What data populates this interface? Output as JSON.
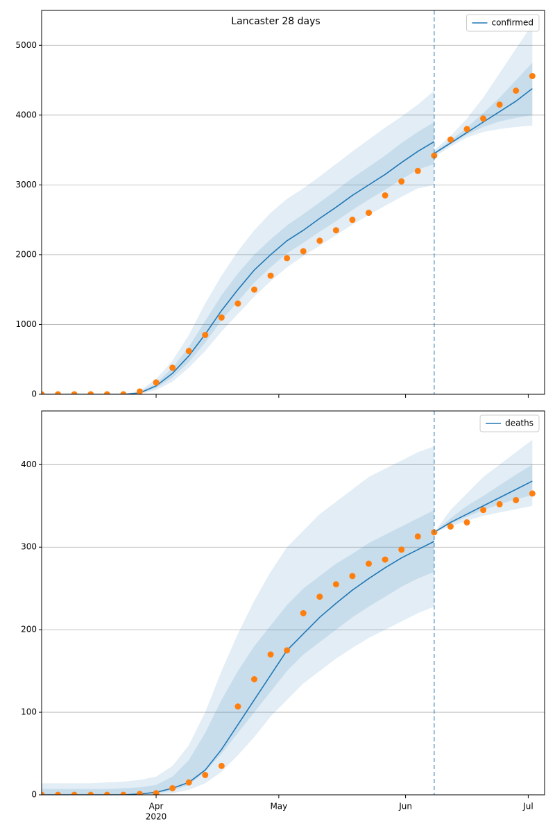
{
  "chart_data": [
    {
      "type": "line",
      "title": "Lancaster 28 days",
      "x": [
        0,
        4,
        8,
        12,
        16,
        20,
        24,
        28,
        32,
        36,
        40,
        44,
        48,
        52,
        56,
        60,
        64,
        68,
        72,
        76,
        80,
        84,
        88,
        92,
        96,
        100,
        104,
        108,
        112,
        116,
        120
      ],
      "xlim": [
        0,
        123
      ],
      "xticks": [
        28,
        58,
        89,
        119
      ],
      "ylim": [
        0,
        5500
      ],
      "yticks": [
        0,
        1000,
        2000,
        3000,
        4000,
        5000
      ],
      "grid": true,
      "legend": "upper right",
      "vline": 96,
      "vline_color": "#1f77b4",
      "series": [
        {
          "name": "confirmed",
          "color": "#1f77b4",
          "values": [
            0,
            0,
            0,
            0,
            0,
            0,
            20,
            120,
            300,
            550,
            860,
            1200,
            1500,
            1780,
            2000,
            2200,
            2350,
            2520,
            2680,
            2850,
            3000,
            3150,
            3320,
            3480,
            3620,
            null,
            null,
            null,
            null,
            null,
            null
          ]
        },
        {
          "color": "#1f77b4",
          "values": [
            null,
            null,
            null,
            null,
            null,
            null,
            null,
            null,
            null,
            null,
            null,
            null,
            null,
            null,
            null,
            null,
            null,
            null,
            null,
            null,
            null,
            null,
            null,
            null,
            3450,
            3600,
            3750,
            3900,
            4050,
            4200,
            4380
          ]
        },
        {
          "color": "#ff7f0e",
          "marker": "o",
          "values": [
            0,
            0,
            0,
            0,
            0,
            0,
            40,
            170,
            380,
            620,
            850,
            1100,
            1300,
            1500,
            1700,
            1950,
            2050,
            2200,
            2350,
            2500,
            2600,
            2850,
            3050,
            3200,
            3420,
            3650,
            3800,
            3950,
            4150,
            4350,
            4560
          ]
        }
      ],
      "bands": [
        {
          "color": "#1f77b4",
          "lower": [
            0,
            0,
            0,
            0,
            0,
            0,
            5,
            60,
            180,
            380,
            620,
            900,
            1150,
            1400,
            1620,
            1820,
            1980,
            2130,
            2280,
            2430,
            2570,
            2700,
            2830,
            2950,
            3000,
            null,
            null,
            null,
            null,
            null,
            null
          ],
          "upper": [
            0,
            0,
            0,
            0,
            0,
            5,
            50,
            220,
            480,
            850,
            1300,
            1700,
            2050,
            2350,
            2600,
            2800,
            2950,
            3120,
            3300,
            3480,
            3650,
            3820,
            3980,
            4150,
            4350,
            null,
            null,
            null,
            null,
            null,
            null
          ]
        },
        {
          "color": "#1f77b4",
          "lower": [
            0,
            0,
            0,
            0,
            0,
            0,
            12,
            90,
            240,
            460,
            740,
            1060,
            1330,
            1600,
            1820,
            2020,
            2170,
            2330,
            2480,
            2640,
            2790,
            2930,
            3080,
            3220,
            3300,
            null,
            null,
            null,
            null,
            null,
            null
          ],
          "upper": [
            0,
            0,
            0,
            0,
            0,
            2,
            30,
            160,
            380,
            680,
            1050,
            1420,
            1730,
            2000,
            2220,
            2420,
            2580,
            2750,
            2920,
            3100,
            3260,
            3420,
            3600,
            3760,
            3900,
            null,
            null,
            null,
            null,
            null,
            null
          ]
        },
        {
          "color": "#1f77b4",
          "lower": [
            null,
            null,
            null,
            null,
            null,
            null,
            null,
            null,
            null,
            null,
            null,
            null,
            null,
            null,
            null,
            null,
            null,
            null,
            null,
            null,
            null,
            null,
            null,
            null,
            3400,
            3550,
            3680,
            3760,
            3800,
            3830,
            3850
          ],
          "upper": [
            null,
            null,
            null,
            null,
            null,
            null,
            null,
            null,
            null,
            null,
            null,
            null,
            null,
            null,
            null,
            null,
            null,
            null,
            null,
            null,
            null,
            null,
            null,
            null,
            3500,
            3700,
            3950,
            4250,
            4600,
            4950,
            5300
          ]
        },
        {
          "color": "#1f77b4",
          "lower": [
            null,
            null,
            null,
            null,
            null,
            null,
            null,
            null,
            null,
            null,
            null,
            null,
            null,
            null,
            null,
            null,
            null,
            null,
            null,
            null,
            null,
            null,
            null,
            null,
            3430,
            3580,
            3720,
            3830,
            3910,
            3960,
            4000
          ],
          "upper": [
            null,
            null,
            null,
            null,
            null,
            null,
            null,
            null,
            null,
            null,
            null,
            null,
            null,
            null,
            null,
            null,
            null,
            null,
            null,
            null,
            null,
            null,
            null,
            null,
            3470,
            3640,
            3820,
            4030,
            4250,
            4500,
            4750
          ]
        }
      ]
    },
    {
      "type": "line",
      "x": [
        0,
        4,
        8,
        12,
        16,
        20,
        24,
        28,
        32,
        36,
        40,
        44,
        48,
        52,
        56,
        60,
        64,
        68,
        72,
        76,
        80,
        84,
        88,
        92,
        96,
        100,
        104,
        108,
        112,
        116,
        120
      ],
      "xlim": [
        0,
        123
      ],
      "xticks": [
        {
          "value": 28,
          "label": "Apr",
          "sublabel": "2020"
        },
        {
          "value": 58,
          "label": "May"
        },
        {
          "value": 89,
          "label": "Jun"
        },
        {
          "value": 119,
          "label": "Jul"
        }
      ],
      "ylim": [
        0,
        465
      ],
      "yticks": [
        0,
        100,
        200,
        300,
        400
      ],
      "grid": true,
      "legend": "upper right",
      "vline": 96,
      "vline_color": "#1f77b4",
      "series": [
        {
          "name": "deaths",
          "color": "#1f77b4",
          "values": [
            0,
            0,
            0,
            0,
            0,
            0,
            1,
            3,
            8,
            15,
            30,
            55,
            85,
            115,
            145,
            175,
            195,
            215,
            232,
            248,
            262,
            275,
            287,
            297,
            307,
            null,
            null,
            null,
            null,
            null,
            null
          ]
        },
        {
          "color": "#1f77b4",
          "values": [
            null,
            null,
            null,
            null,
            null,
            null,
            null,
            null,
            null,
            null,
            null,
            null,
            null,
            null,
            null,
            null,
            null,
            null,
            null,
            null,
            null,
            null,
            null,
            null,
            318,
            330,
            340,
            350,
            360,
            370,
            380
          ]
        },
        {
          "color": "#ff7f0e",
          "marker": "o",
          "values": [
            0,
            0,
            0,
            0,
            0,
            0,
            1,
            2,
            8,
            15,
            24,
            35,
            107,
            140,
            170,
            175,
            220,
            240,
            255,
            265,
            280,
            285,
            297,
            313,
            318,
            325,
            330,
            345,
            352,
            357,
            365
          ]
        }
      ],
      "bands": [
        {
          "color": "#1f77b4",
          "lower": [
            0,
            0,
            0,
            0,
            0,
            0,
            0,
            0,
            2,
            6,
            14,
            28,
            48,
            70,
            95,
            115,
            135,
            150,
            165,
            178,
            190,
            200,
            210,
            220,
            228,
            null,
            null,
            null,
            null,
            null,
            null
          ],
          "upper": [
            14,
            14,
            14,
            14,
            15,
            16,
            18,
            22,
            35,
            60,
            100,
            150,
            195,
            235,
            270,
            300,
            320,
            340,
            355,
            370,
            385,
            395,
            405,
            415,
            422,
            null,
            null,
            null,
            null,
            null,
            null
          ]
        },
        {
          "color": "#1f77b4",
          "lower": [
            0,
            0,
            0,
            0,
            0,
            0,
            1,
            2,
            5,
            12,
            28,
            50,
            75,
            100,
            125,
            150,
            170,
            185,
            200,
            215,
            228,
            240,
            252,
            262,
            270,
            null,
            null,
            null,
            null,
            null,
            null
          ],
          "upper": [
            7,
            7,
            7,
            7,
            7,
            8,
            9,
            12,
            22,
            42,
            75,
            115,
            150,
            180,
            205,
            230,
            250,
            265,
            280,
            292,
            305,
            315,
            325,
            335,
            345,
            null,
            null,
            null,
            null,
            null,
            null
          ]
        },
        {
          "color": "#1f77b4",
          "lower": [
            null,
            null,
            null,
            null,
            null,
            null,
            null,
            null,
            null,
            null,
            null,
            null,
            null,
            null,
            null,
            null,
            null,
            null,
            null,
            null,
            null,
            null,
            null,
            null,
            318,
            325,
            332,
            338,
            342,
            346,
            350
          ],
          "upper": [
            null,
            null,
            null,
            null,
            null,
            null,
            null,
            null,
            null,
            null,
            null,
            null,
            null,
            null,
            null,
            null,
            null,
            null,
            null,
            null,
            null,
            null,
            null,
            null,
            318,
            345,
            365,
            385,
            400,
            415,
            430
          ]
        },
        {
          "color": "#1f77b4",
          "lower": [
            null,
            null,
            null,
            null,
            null,
            null,
            null,
            null,
            null,
            null,
            null,
            null,
            null,
            null,
            null,
            null,
            null,
            null,
            null,
            null,
            null,
            null,
            null,
            null,
            318,
            328,
            337,
            345,
            352,
            358,
            363
          ],
          "upper": [
            null,
            null,
            null,
            null,
            null,
            null,
            null,
            null,
            null,
            null,
            null,
            null,
            null,
            null,
            null,
            null,
            null,
            null,
            null,
            null,
            null,
            null,
            null,
            null,
            318,
            335,
            350,
            362,
            375,
            388,
            400
          ]
        }
      ]
    }
  ]
}
